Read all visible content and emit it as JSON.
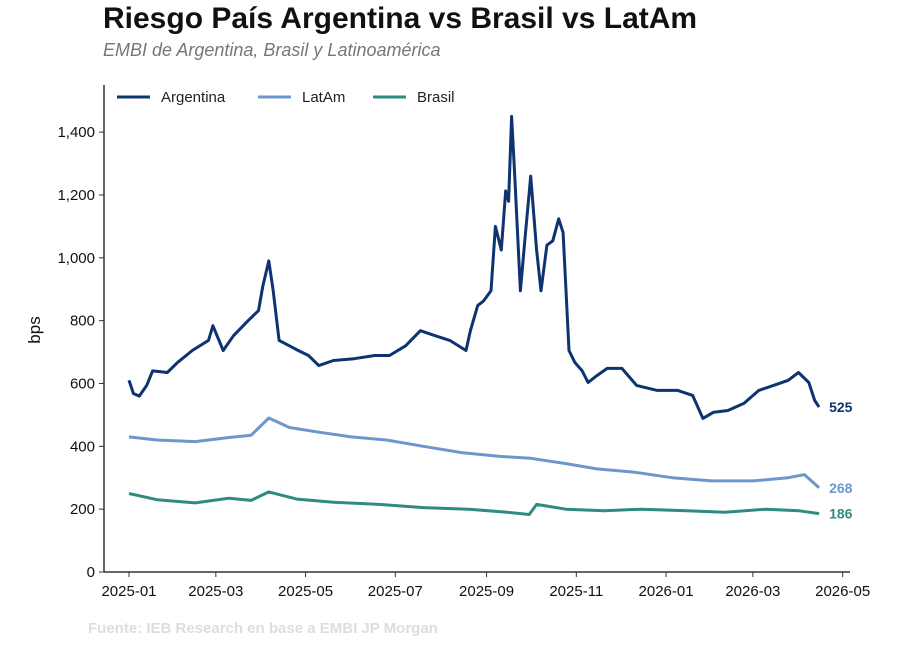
{
  "title": "Riesgo País Argentina vs Brasil vs LatAm",
  "subtitle": "EMBI de Argentina, Brasil y Latinoamérica",
  "source": "Fuente: IEB Research en base a EMBI JP Morgan",
  "chart_data": {
    "type": "line",
    "ylabel": "bps",
    "xlabel": "",
    "ylim": [
      0,
      1550
    ],
    "xlim": [
      "2024-12-15",
      "2026-05-06"
    ],
    "yticks": [
      0,
      200,
      400,
      600,
      800,
      1000,
      1200,
      1400
    ],
    "ytick_labels": [
      "0",
      "200",
      "400",
      "600",
      "800",
      "1,000",
      "1,200",
      "1,400"
    ],
    "xticks": [
      "2025-01-01",
      "2025-03-01",
      "2025-05-01",
      "2025-07-01",
      "2025-09-01",
      "2025-11-01",
      "2026-01-01",
      "2026-03-01",
      "2026-05-01"
    ],
    "xtick_labels": [
      "2025-01",
      "2025-03",
      "2025-05",
      "2025-07",
      "2025-09",
      "2025-11",
      "2026-01",
      "2026-03",
      "2026-05"
    ],
    "grid": false,
    "legend": "top-left",
    "series": [
      {
        "name": "Argentina",
        "color": "#0d3370",
        "end_label": "525",
        "x": [
          "2025-01-01",
          "2025-01-04",
          "2025-01-08",
          "2025-01-13",
          "2025-01-17",
          "2025-01-27",
          "2025-02-03",
          "2025-02-13",
          "2025-02-24",
          "2025-02-27",
          "2025-03-06",
          "2025-03-13",
          "2025-03-23",
          "2025-03-30",
          "2025-04-02",
          "2025-04-06",
          "2025-04-09",
          "2025-04-13",
          "2025-04-20",
          "2025-04-26",
          "2025-05-03",
          "2025-05-10",
          "2025-05-20",
          "2025-06-03",
          "2025-06-17",
          "2025-06-27",
          "2025-07-08",
          "2025-07-18",
          "2025-07-28",
          "2025-08-07",
          "2025-08-18",
          "2025-08-21",
          "2025-08-26",
          "2025-08-30",
          "2025-09-04",
          "2025-09-07",
          "2025-09-11",
          "2025-09-14",
          "2025-09-16",
          "2025-09-18",
          "2025-09-20",
          "2025-09-24",
          "2025-09-27",
          "2025-10-01",
          "2025-10-05",
          "2025-10-08",
          "2025-10-12",
          "2025-10-16",
          "2025-10-20",
          "2025-10-23",
          "2025-10-27",
          "2025-10-31",
          "2025-11-05",
          "2025-11-09",
          "2025-11-15",
          "2025-11-22",
          "2025-12-02",
          "2025-12-12",
          "2025-12-26",
          "2026-01-09",
          "2026-01-19",
          "2026-01-26",
          "2026-02-02",
          "2026-02-12",
          "2026-02-23",
          "2026-03-05",
          "2026-03-15",
          "2026-03-25",
          "2026-04-01",
          "2026-04-08",
          "2026-04-12",
          "2026-04-15"
        ],
        "values": [
          610,
          568,
          560,
          594,
          640,
          635,
          667,
          705,
          737,
          784,
          705,
          752,
          800,
          832,
          911,
          990,
          895,
          737,
          720,
          705,
          689,
          657,
          673,
          679,
          689,
          689,
          720,
          768,
          752,
          737,
          705,
          768,
          848,
          863,
          895,
          1100,
          1025,
          1213,
          1180,
          1450,
          1276,
          895,
          1054,
          1260,
          1025,
          895,
          1040,
          1054,
          1124,
          1080,
          705,
          667,
          640,
          603,
          625,
          648,
          648,
          594,
          578,
          578,
          562,
          489,
          508,
          514,
          537,
          578,
          594,
          610,
          635,
          603,
          546,
          525
        ]
      },
      {
        "name": "LatAm",
        "color": "#6d97cc",
        "end_label": "268",
        "x": [
          "2025-01-01",
          "2025-01-20",
          "2025-02-15",
          "2025-03-10",
          "2025-03-25",
          "2025-04-06",
          "2025-04-20",
          "2025-05-10",
          "2025-06-01",
          "2025-06-25",
          "2025-07-20",
          "2025-08-15",
          "2025-09-10",
          "2025-10-01",
          "2025-10-25",
          "2025-11-15",
          "2025-12-10",
          "2026-01-05",
          "2026-02-01",
          "2026-03-01",
          "2026-03-25",
          "2026-04-05",
          "2026-04-15"
        ],
        "values": [
          430,
          420,
          415,
          428,
          435,
          490,
          460,
          445,
          430,
          420,
          400,
          380,
          368,
          362,
          345,
          328,
          318,
          300,
          290,
          290,
          300,
          310,
          268
        ]
      },
      {
        "name": "Brasil",
        "color": "#2e8b7f",
        "end_label": "186",
        "x": [
          "2025-01-01",
          "2025-01-20",
          "2025-02-15",
          "2025-03-10",
          "2025-03-25",
          "2025-04-06",
          "2025-04-25",
          "2025-05-20",
          "2025-06-20",
          "2025-07-20",
          "2025-08-20",
          "2025-09-15",
          "2025-09-30",
          "2025-10-05",
          "2025-10-25",
          "2025-11-20",
          "2025-12-15",
          "2026-01-15",
          "2026-02-10",
          "2026-03-10",
          "2026-04-01",
          "2026-04-15"
        ],
        "values": [
          250,
          230,
          220,
          235,
          228,
          255,
          232,
          222,
          215,
          205,
          200,
          190,
          183,
          215,
          200,
          195,
          200,
          195,
          190,
          200,
          195,
          186
        ]
      }
    ]
  }
}
